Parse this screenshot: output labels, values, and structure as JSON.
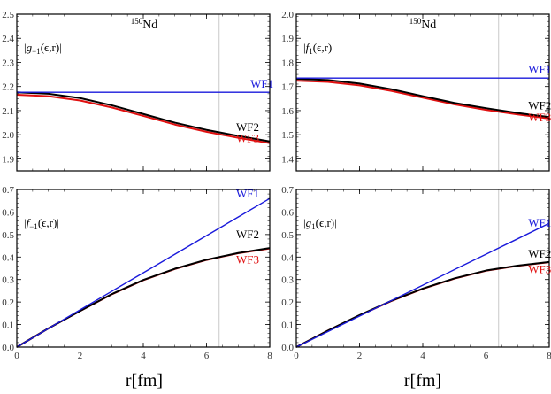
{
  "colors": {
    "WF1": "#1a1adb",
    "WF2": "#000000",
    "WF3": "#e01010",
    "vline": "#bbbbbb"
  },
  "xlabel": "r[fm]",
  "chart_data": [
    {
      "type": "line",
      "nucleus": "150Nd",
      "nucleus_mass": "150",
      "nucleus_symbol": "Nd",
      "annotation": "|g−1(ϵ,r)|",
      "xlim": [
        0,
        8
      ],
      "ylim": [
        1.85,
        2.5
      ],
      "xticks": [
        "0",
        "2",
        "4",
        "6",
        "8"
      ],
      "yticks": [
        "1.9",
        "2.0",
        "2.1",
        "2.2",
        "2.3",
        "2.4",
        "2.5"
      ],
      "vline_x": 6.4,
      "x": [
        0,
        1,
        2,
        3,
        4,
        5,
        6,
        7,
        8
      ],
      "series": [
        {
          "name": "WF1",
          "values": [
            2.176,
            2.176,
            2.176,
            2.176,
            2.176,
            2.176,
            2.176,
            2.176,
            2.176
          ],
          "label_at": [
            7.75,
            2.195
          ]
        },
        {
          "name": "WF2",
          "values": [
            2.176,
            2.17,
            2.152,
            2.122,
            2.086,
            2.05,
            2.02,
            1.995,
            1.972
          ],
          "label_at": [
            7.3,
            2.015
          ]
        },
        {
          "name": "WF3",
          "values": [
            2.166,
            2.16,
            2.142,
            2.113,
            2.078,
            2.042,
            2.012,
            1.987,
            1.965
          ],
          "label_at": [
            7.3,
            1.97
          ]
        }
      ]
    },
    {
      "type": "line",
      "nucleus": "150Nd",
      "nucleus_mass": "150",
      "nucleus_symbol": "Nd",
      "annotation": "|f1(ϵ,r)|",
      "xlim": [
        0,
        8
      ],
      "ylim": [
        1.35,
        2.0
      ],
      "xticks": [
        "0",
        "2",
        "4",
        "6",
        "8"
      ],
      "yticks": [
        "1.4",
        "1.5",
        "1.6",
        "1.7",
        "1.8",
        "1.9",
        "2.0"
      ],
      "vline_x": 6.4,
      "x": [
        0,
        1,
        2,
        3,
        4,
        5,
        6,
        7,
        8
      ],
      "series": [
        {
          "name": "WF1",
          "values": [
            1.735,
            1.735,
            1.735,
            1.735,
            1.735,
            1.735,
            1.735,
            1.735,
            1.735
          ],
          "label_at": [
            7.7,
            1.755
          ]
        },
        {
          "name": "WF2",
          "values": [
            1.732,
            1.727,
            1.712,
            1.689,
            1.66,
            1.632,
            1.61,
            1.59,
            1.573
          ],
          "label_at": [
            7.7,
            1.605
          ]
        },
        {
          "name": "WF3",
          "values": [
            1.724,
            1.719,
            1.705,
            1.682,
            1.654,
            1.626,
            1.603,
            1.584,
            1.567
          ],
          "label_at": [
            7.7,
            1.555
          ]
        }
      ]
    },
    {
      "type": "line",
      "annotation": "|f−1(ϵ,r)|",
      "xlim": [
        0,
        8
      ],
      "ylim": [
        0,
        0.7
      ],
      "xticks": [
        "0",
        "2",
        "4",
        "6",
        "8"
      ],
      "yticks": [
        "0.0",
        "0.1",
        "0.2",
        "0.3",
        "0.4",
        "0.5",
        "0.6",
        "0.7"
      ],
      "vline_x": 6.4,
      "x": [
        0,
        1,
        2,
        3,
        4,
        5,
        6,
        7,
        8
      ],
      "series": [
        {
          "name": "WF1",
          "values": [
            0,
            0.0825,
            0.165,
            0.2475,
            0.33,
            0.4125,
            0.495,
            0.5775,
            0.66
          ],
          "label_at": [
            7.3,
            0.665
          ]
        },
        {
          "name": "WF2",
          "values": [
            0,
            0.083,
            0.16,
            0.235,
            0.298,
            0.348,
            0.388,
            0.418,
            0.44
          ],
          "label_at": [
            7.3,
            0.483
          ]
        },
        {
          "name": "WF3",
          "values": [
            0,
            0.083,
            0.16,
            0.234,
            0.297,
            0.347,
            0.387,
            0.417,
            0.438
          ],
          "label_at": [
            7.3,
            0.372
          ]
        }
      ]
    },
    {
      "type": "line",
      "annotation": "|g1(ϵ,r)|",
      "xlim": [
        0,
        8
      ],
      "ylim": [
        0,
        0.7
      ],
      "xticks": [
        "0",
        "2",
        "4",
        "6",
        "8"
      ],
      "yticks": [
        "0.0",
        "0.1",
        "0.2",
        "0.3",
        "0.4",
        "0.5",
        "0.6",
        "0.7"
      ],
      "vline_x": 6.4,
      "x": [
        0,
        1,
        2,
        3,
        4,
        5,
        6,
        7,
        8
      ],
      "series": [
        {
          "name": "WF1",
          "values": [
            0,
            0.069,
            0.1375,
            0.206,
            0.275,
            0.344,
            0.4125,
            0.481,
            0.55
          ],
          "label_at": [
            7.7,
            0.535
          ]
        },
        {
          "name": "WF2",
          "values": [
            0,
            0.073,
            0.142,
            0.205,
            0.26,
            0.305,
            0.34,
            0.362,
            0.378
          ],
          "label_at": [
            7.7,
            0.398
          ]
        },
        {
          "name": "WF3",
          "values": [
            0,
            0.073,
            0.141,
            0.204,
            0.259,
            0.304,
            0.339,
            0.361,
            0.377
          ],
          "label_at": [
            7.7,
            0.328
          ]
        }
      ]
    }
  ]
}
